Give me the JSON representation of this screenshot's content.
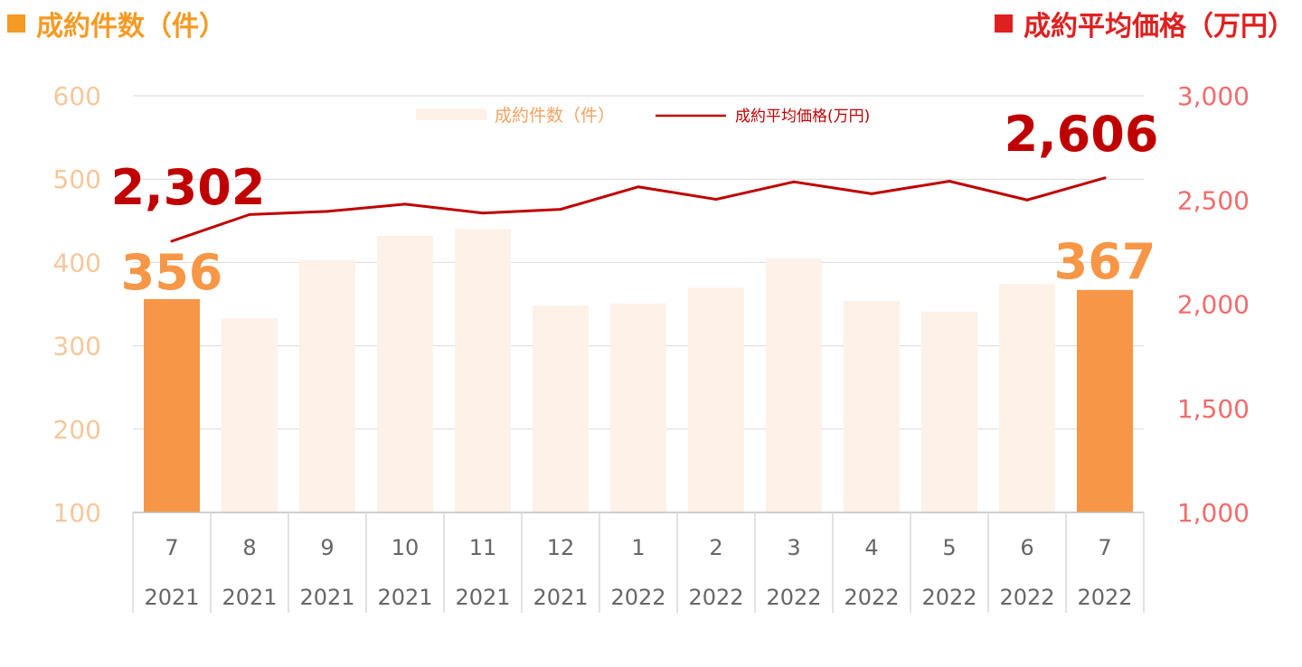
{
  "titles": {
    "left": "成約件数（件）",
    "right": "成約平均価格（万円）"
  },
  "colors": {
    "left_title": "#f59a23",
    "right_title": "#e02020",
    "bar_highlight": "#f79646",
    "bar_normal": "#fdf1e8",
    "line": "#c00000"
  },
  "legend": {
    "bar": "成約件数（件）",
    "line": "成約平均価格(万円)"
  },
  "chart_data": {
    "type": "bar",
    "categories": [
      "7",
      "8",
      "9",
      "10",
      "11",
      "12",
      "1",
      "2",
      "3",
      "4",
      "5",
      "6",
      "7"
    ],
    "years": [
      "2021",
      "2021",
      "2021",
      "2021",
      "2021",
      "2021",
      "2022",
      "2022",
      "2022",
      "2022",
      "2022",
      "2022",
      "2022"
    ],
    "series": [
      {
        "name": "成約件数（件）",
        "type": "bar",
        "axis": "left",
        "values": [
          356,
          333,
          403,
          432,
          440,
          348,
          351,
          370,
          405,
          354,
          341,
          374,
          367
        ],
        "highlight": [
          true,
          false,
          false,
          false,
          false,
          false,
          false,
          false,
          false,
          false,
          false,
          false,
          true
        ]
      },
      {
        "name": "成約平均価格(万円)",
        "type": "line",
        "axis": "right",
        "values": [
          2302,
          2430,
          2445,
          2480,
          2437,
          2455,
          2563,
          2503,
          2587,
          2530,
          2590,
          2500,
          2606
        ]
      }
    ],
    "y_left": {
      "min": 100,
      "max": 600,
      "ticks": [
        "600",
        "500",
        "400",
        "300",
        "200",
        "100"
      ]
    },
    "y_right": {
      "min": 1000,
      "max": 3000,
      "ticks": [
        "3,000",
        "2,500",
        "2,000",
        "1,500",
        "1,000"
      ]
    },
    "annotations": {
      "first_bar": "356",
      "last_bar": "367",
      "first_line": "2,302",
      "last_line": "2,606"
    },
    "grid": true,
    "legend_position": "top-center"
  }
}
